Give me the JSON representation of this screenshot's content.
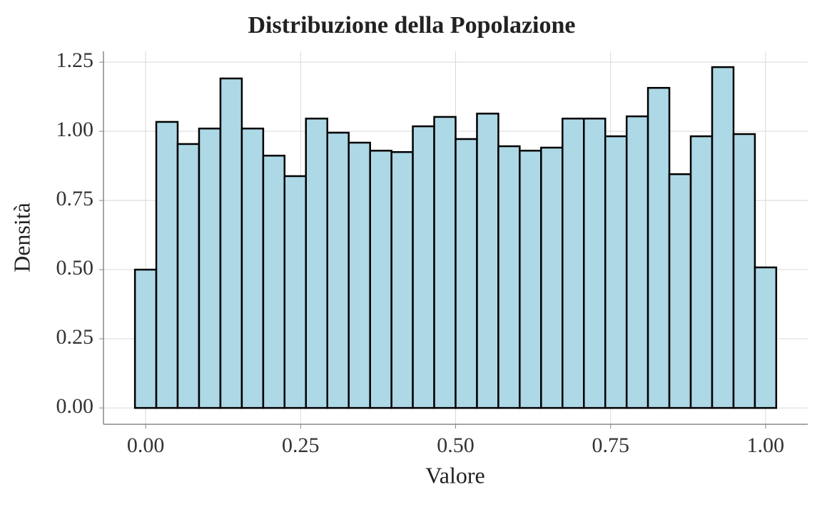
{
  "chart_data": {
    "type": "histogram",
    "title": "Distribuzione della Popolazione",
    "x_label": "Valore",
    "y_label": "Densità",
    "bins": [
      -0.0172,
      0.0172,
      0.0517,
      0.0862,
      0.1207,
      0.1552,
      0.1897,
      0.2241,
      0.2586,
      0.2931,
      0.3276,
      0.3621,
      0.3966,
      0.431,
      0.4655,
      0.5,
      0.5345,
      0.569,
      0.6034,
      0.6379,
      0.6724,
      0.7069,
      0.7414,
      0.7759,
      0.8103,
      0.8448,
      0.8793,
      0.9138,
      0.9483,
      0.9828,
      1.0172
    ],
    "values": [
      0.5,
      1.034,
      0.954,
      1.01,
      1.191,
      1.01,
      0.912,
      0.838,
      1.046,
      0.995,
      0.959,
      0.93,
      0.925,
      1.018,
      1.052,
      0.972,
      1.064,
      0.946,
      0.93,
      0.941,
      1.046,
      1.046,
      0.982,
      1.054,
      1.157,
      0.845,
      0.982,
      1.232,
      0.99,
      0.508
    ],
    "color": "#add8e6",
    "edgecolor": "#000000",
    "xlim": [
      -0.068,
      1.068
    ],
    "ylim": [
      -0.059,
      1.289
    ],
    "xticks": [
      {
        "value": 0,
        "label": "0.00"
      },
      {
        "value": 0.25,
        "label": "0.25"
      },
      {
        "value": 0.5,
        "label": "0.50"
      },
      {
        "value": 0.75,
        "label": "0.75"
      },
      {
        "value": 1,
        "label": "1.00"
      }
    ],
    "yticks": [
      {
        "value": 0,
        "label": "0.00"
      },
      {
        "value": 0.25,
        "label": "0.25"
      },
      {
        "value": 0.5,
        "label": "0.50"
      },
      {
        "value": 0.75,
        "label": "0.75"
      },
      {
        "value": 1,
        "label": "1.00"
      },
      {
        "value": 1.25,
        "label": "1.25"
      }
    ],
    "grid": true
  }
}
